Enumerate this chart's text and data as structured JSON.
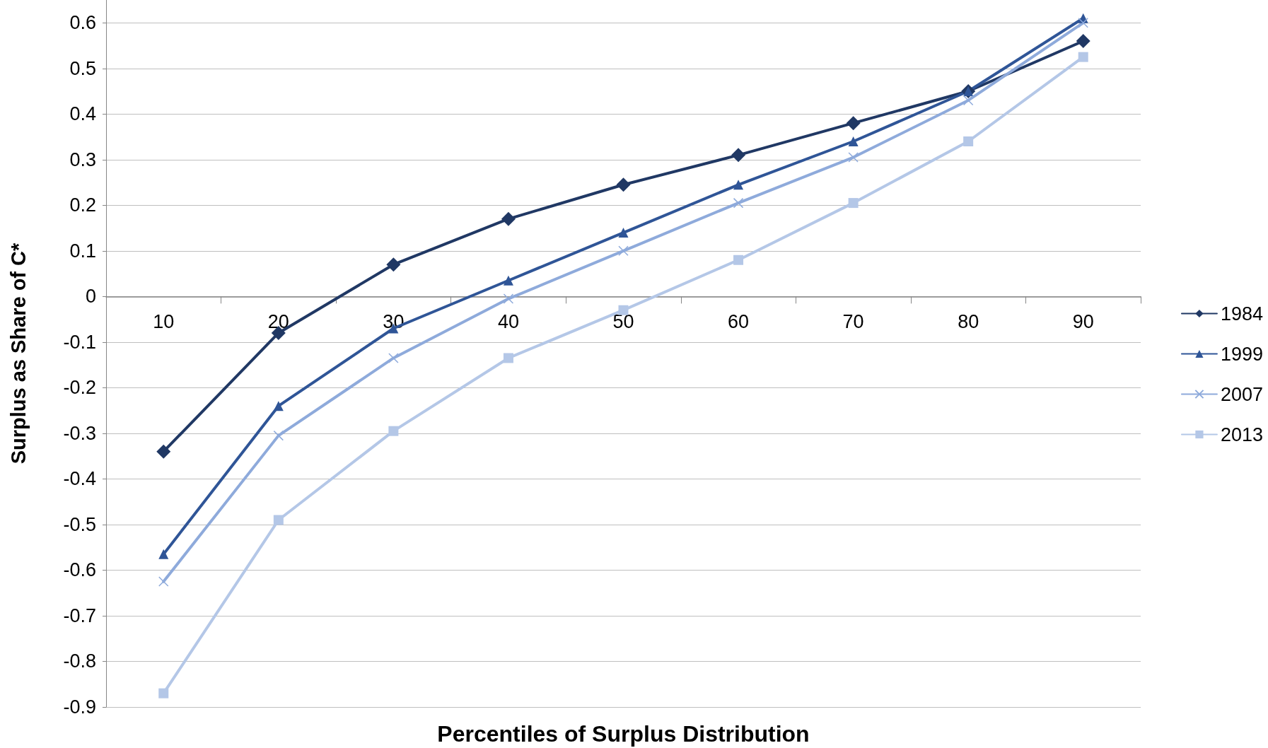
{
  "chart_data": {
    "type": "line",
    "xlabel": "Percentiles of Surplus Distribution",
    "ylabel": "Surplus as Share of C*",
    "categories": [
      "10",
      "20",
      "30",
      "40",
      "50",
      "60",
      "70",
      "80",
      "90"
    ],
    "series": [
      {
        "name": "1984",
        "color": "#203864",
        "marker": "diamond",
        "values": [
          -0.34,
          -0.08,
          0.07,
          0.17,
          0.245,
          0.31,
          0.38,
          0.45,
          0.56
        ]
      },
      {
        "name": "1999",
        "color": "#2f5597",
        "marker": "triangle",
        "values": [
          -0.565,
          -0.24,
          -0.07,
          0.035,
          0.14,
          0.245,
          0.34,
          0.45,
          0.61
        ]
      },
      {
        "name": "2007",
        "color": "#8eaadb",
        "marker": "cross",
        "values": [
          -0.625,
          -0.305,
          -0.135,
          -0.005,
          0.1,
          0.205,
          0.305,
          0.43,
          0.6
        ]
      },
      {
        "name": "2013",
        "color": "#b4c7e7",
        "marker": "square",
        "values": [
          -0.87,
          -0.49,
          -0.295,
          -0.135,
          -0.03,
          0.08,
          0.205,
          0.34,
          0.525
        ]
      }
    ],
    "ylim": [
      -0.9,
      0.65
    ],
    "yticks": [
      -0.9,
      -0.8,
      -0.7,
      -0.6,
      -0.5,
      -0.4,
      -0.3,
      -0.2,
      -0.1,
      0,
      0.1,
      0.2,
      0.3,
      0.4,
      0.5,
      0.6
    ],
    "grid": "y",
    "legend": "right",
    "line_style": "solid"
  }
}
